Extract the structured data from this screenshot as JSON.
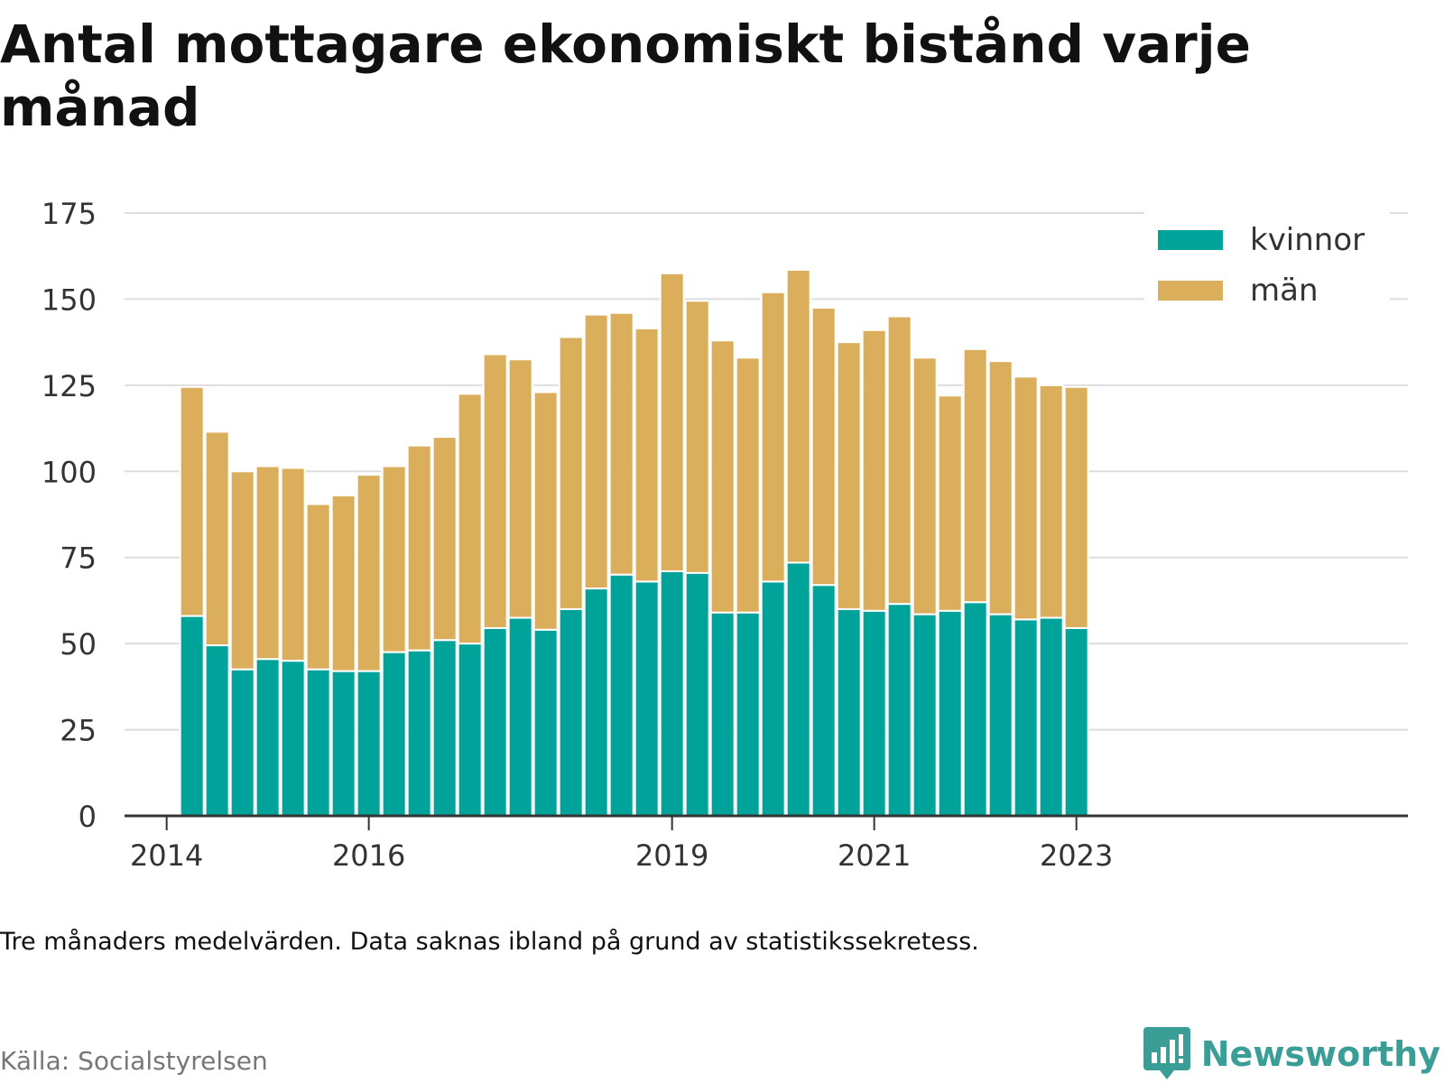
{
  "title": "Antal mottagare ekonomiskt bistånd varje månad",
  "note": "Tre månaders medelvärden. Data saknas ibland på grund av statistikssekretess.",
  "source": "Källa: Socialstyrelsen",
  "brand": "Newsworthy",
  "colors": {
    "kvinnor": "#00a39a",
    "man": "#dbae5b",
    "grid": "#dddddd",
    "axis": "#333333",
    "text": "#333333"
  },
  "chart_data": {
    "type": "bar",
    "stacked": true,
    "x_dates": [
      "2014-04",
      "2014-07",
      "2014-10",
      "2015-01",
      "2015-04",
      "2015-07",
      "2015-10",
      "2016-01",
      "2016-04",
      "2016-07",
      "2016-10",
      "2017-01",
      "2017-04",
      "2017-07",
      "2017-10",
      "2018-01",
      "2018-04",
      "2018-07",
      "2018-10",
      "2019-01",
      "2019-04",
      "2019-07",
      "2019-10",
      "2020-01",
      "2020-04",
      "2020-07",
      "2020-10",
      "2021-01",
      "2021-04",
      "2021-07",
      "2021-10",
      "2022-01",
      "2022-04",
      "2022-07",
      "2022-10",
      "2023-01",
      "2023-04"
    ],
    "series": [
      {
        "name": "kvinnor",
        "values": [
          58,
          49.5,
          42.5,
          45.5,
          45,
          42.5,
          42,
          42,
          47.5,
          48,
          51,
          50,
          54.5,
          57.5,
          54,
          60,
          66,
          70,
          68,
          71,
          70.5,
          59,
          59,
          68,
          73.5,
          67,
          60,
          59.5,
          61.5,
          58.5,
          59.5,
          62,
          58.5,
          57,
          57.5,
          54.5,
          null
        ]
      },
      {
        "name": "män",
        "values": [
          66.5,
          62,
          57.5,
          56,
          56,
          48,
          51,
          57,
          54,
          59.5,
          59,
          72.5,
          79.5,
          75,
          69,
          79,
          79.5,
          76,
          73.5,
          86.5,
          79,
          79,
          74,
          84,
          85,
          80.5,
          77.5,
          81.5,
          83.5,
          74.5,
          62.5,
          73.5,
          73.5,
          70.5,
          67.5,
          70,
          null
        ]
      }
    ],
    "xticks": [
      {
        "label": "2014",
        "date": "2014-01"
      },
      {
        "label": "2016",
        "date": "2016-01"
      },
      {
        "label": "2019",
        "date": "2019-01"
      },
      {
        "label": "2021",
        "date": "2021-01"
      },
      {
        "label": "2023",
        "date": "2023-01"
      }
    ],
    "yticks": [
      0,
      25,
      50,
      75,
      100,
      125,
      150,
      175
    ],
    "ylim": [
      0,
      175
    ],
    "grid": true,
    "legend": {
      "position": "top-right",
      "entries": [
        "kvinnor",
        "män"
      ]
    }
  }
}
